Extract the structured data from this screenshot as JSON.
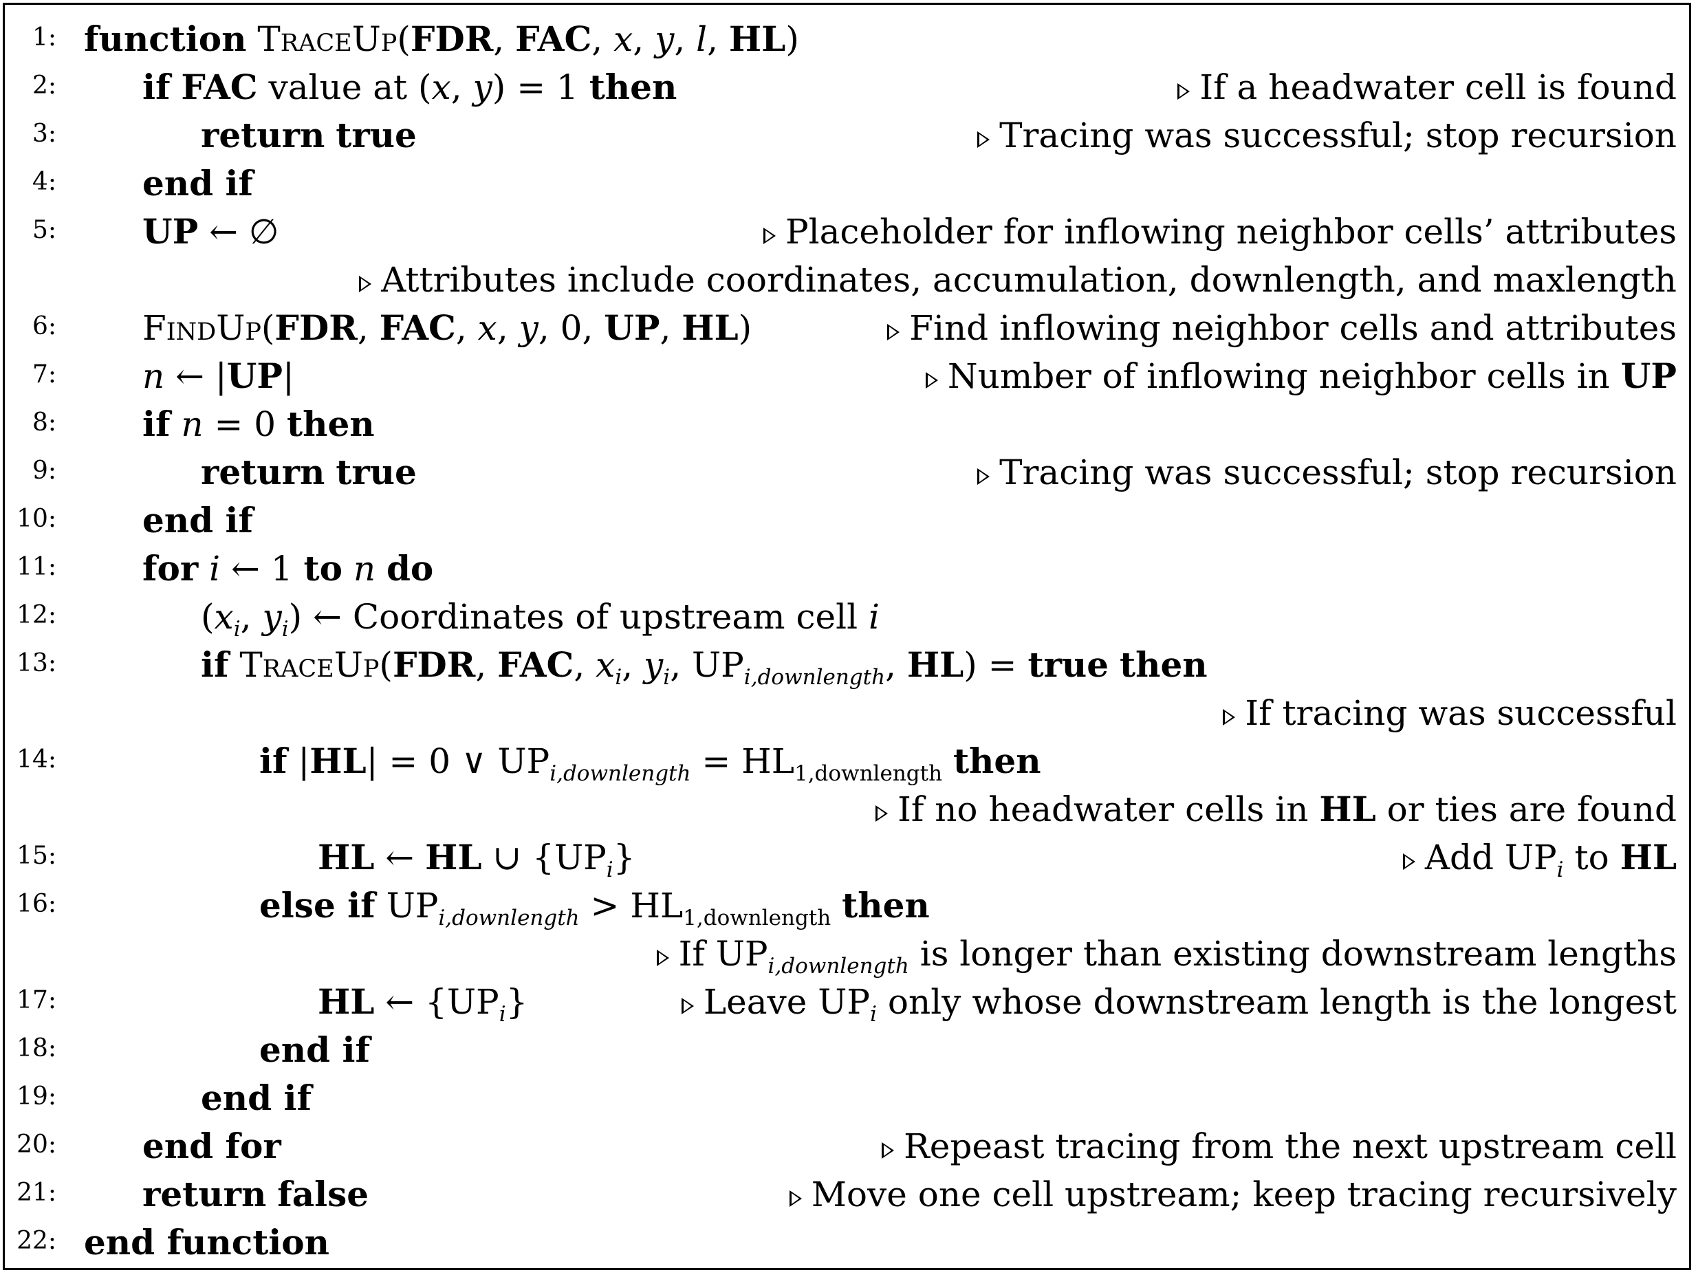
{
  "algorithm": {
    "line_numbers": [
      "1:",
      "2:",
      "3:",
      "4:",
      "5:",
      "6:",
      "7:",
      "8:",
      "9:",
      "10:",
      "11:",
      "12:",
      "13:",
      "14:",
      "15:",
      "16:",
      "17:",
      "18:",
      "19:",
      "20:",
      "21:",
      "22:"
    ],
    "kw": {
      "function": "function",
      "if": "if",
      "then": "then",
      "return": "return",
      "true": "true",
      "false": "false",
      "end_if": "end if",
      "for": "for",
      "to": "to",
      "do": "do",
      "end_for": "end for",
      "else_if": "else if",
      "end_function": "end function",
      "value_at": "value at"
    },
    "names": {
      "traceup": "TraceUp",
      "findup": "FindUp",
      "fdr": "FDR",
      "fac": "FAC",
      "hl": "HL",
      "up": "UP",
      "up_i": "UP",
      "hl1": "HL",
      "coordinates_text": "Coordinates of upstream cell"
    },
    "comments": {
      "c2": "If a headwater cell is found",
      "c3": "Tracing was successful; stop recursion",
      "c5": "Placeholder for inflowing neighbor cells’ attributes",
      "c5b": "Attributes include coordinates, accumulation, downlength, and maxlength",
      "c6": "Find inflowing neighbor cells and attributes",
      "c7": "Number of inflowing neighbor cells in",
      "c9": "Tracing was successful; stop recursion",
      "c13": "If tracing was successful",
      "c14a": "If no headwater cells in",
      "c14b": "or ties are found",
      "c15": "Add",
      "c15b": "to",
      "c16a": "If",
      "c16b": "is longer than existing downstream lengths",
      "c17a": "Leave",
      "c17b": "only whose downstream length is the longest",
      "c20": "Repeast tracing from the next upstream cell",
      "c21": "Move one cell upstream; keep tracing recursively"
    },
    "sub": {
      "downlength": "i,downlength",
      "one_downlength": "1,downlength",
      "i": "i"
    }
  }
}
